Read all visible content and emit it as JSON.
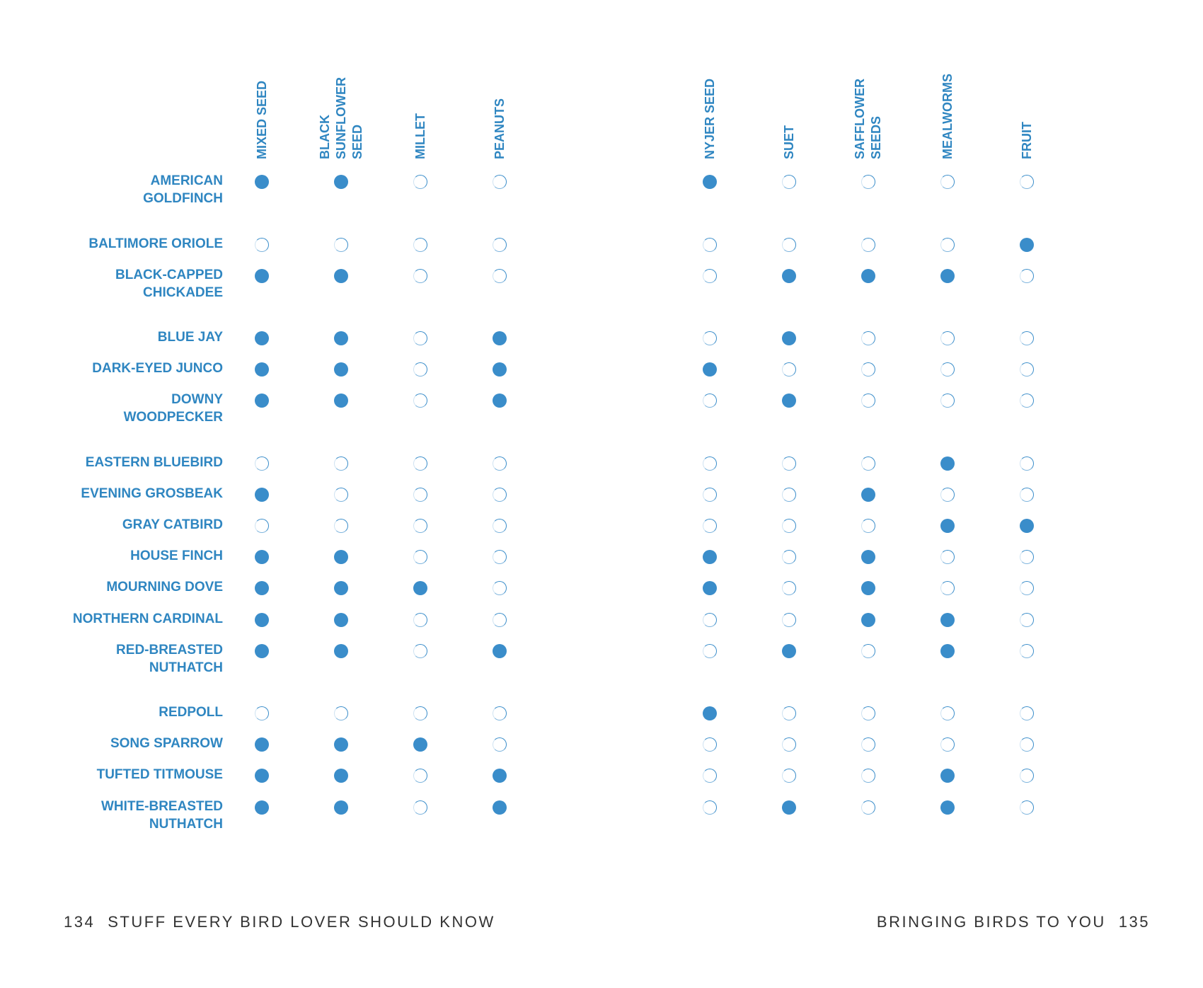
{
  "columns": [
    {
      "lines": [
        "MIXED SEED"
      ]
    },
    {
      "lines": [
        "BLACK",
        "SUNFLOWER",
        "SEED"
      ]
    },
    {
      "lines": [
        "MILLET"
      ]
    },
    {
      "lines": [
        "PEANUTS"
      ]
    },
    {
      "lines": [
        "NYJER SEED"
      ]
    },
    {
      "lines": [
        "SUET"
      ]
    },
    {
      "lines": [
        "SAFFLOWER",
        "SEEDS"
      ]
    },
    {
      "lines": [
        "MEALWORMS"
      ]
    },
    {
      "lines": [
        "FRUIT"
      ]
    }
  ],
  "birds": [
    {
      "name": [
        "AMERICAN",
        "GOLDFINCH"
      ],
      "foods": [
        1,
        1,
        0,
        0,
        1,
        0,
        0,
        0,
        0
      ]
    },
    {
      "name": [
        "BALTIMORE ORIOLE"
      ],
      "foods": [
        0,
        0,
        0,
        0,
        0,
        0,
        0,
        0,
        1
      ]
    },
    {
      "name": [
        "BLACK-CAPPED",
        "CHICKADEE"
      ],
      "foods": [
        1,
        1,
        0,
        0,
        0,
        1,
        1,
        1,
        0
      ]
    },
    {
      "name": [
        "BLUE JAY"
      ],
      "foods": [
        1,
        1,
        0,
        1,
        0,
        1,
        0,
        0,
        0
      ]
    },
    {
      "name": [
        "DARK-EYED JUNCO"
      ],
      "foods": [
        1,
        1,
        0,
        1,
        1,
        0,
        0,
        0,
        0
      ]
    },
    {
      "name": [
        "DOWNY",
        "WOODPECKER"
      ],
      "foods": [
        1,
        1,
        0,
        1,
        0,
        1,
        0,
        0,
        0
      ]
    },
    {
      "name": [
        "EASTERN BLUEBIRD"
      ],
      "foods": [
        0,
        0,
        0,
        0,
        0,
        0,
        0,
        1,
        0
      ]
    },
    {
      "name": [
        "EVENING GROSBEAK"
      ],
      "foods": [
        1,
        0,
        0,
        0,
        0,
        0,
        1,
        0,
        0
      ]
    },
    {
      "name": [
        "GRAY CATBIRD"
      ],
      "foods": [
        0,
        0,
        0,
        0,
        0,
        0,
        0,
        1,
        1
      ]
    },
    {
      "name": [
        "HOUSE FINCH"
      ],
      "foods": [
        1,
        1,
        0,
        0,
        1,
        0,
        1,
        0,
        0
      ]
    },
    {
      "name": [
        "MOURNING DOVE"
      ],
      "foods": [
        1,
        1,
        1,
        0,
        1,
        0,
        1,
        0,
        0
      ]
    },
    {
      "name": [
        "NORTHERN CARDINAL"
      ],
      "foods": [
        1,
        1,
        0,
        0,
        0,
        0,
        1,
        1,
        0
      ]
    },
    {
      "name": [
        "RED-BREASTED",
        "NUTHATCH"
      ],
      "foods": [
        1,
        1,
        0,
        1,
        0,
        1,
        0,
        1,
        0
      ]
    },
    {
      "name": [
        "REDPOLL"
      ],
      "foods": [
        0,
        0,
        0,
        0,
        1,
        0,
        0,
        0,
        0
      ]
    },
    {
      "name": [
        "SONG SPARROW"
      ],
      "foods": [
        1,
        1,
        1,
        0,
        0,
        0,
        0,
        0,
        0
      ]
    },
    {
      "name": [
        "TUFTED TITMOUSE"
      ],
      "foods": [
        1,
        1,
        0,
        1,
        0,
        0,
        0,
        1,
        0
      ]
    },
    {
      "name": [
        "WHITE-BREASTED",
        "NUTHATCH"
      ],
      "foods": [
        1,
        1,
        0,
        1,
        0,
        1,
        0,
        1,
        0
      ]
    }
  ],
  "footer": {
    "left_page_number": "134",
    "left_title": "STUFF EVERY BIRD LOVER SHOULD KNOW",
    "right_title": "BRINGING BIRDS TO YOU",
    "right_page_number": "135"
  },
  "colors": {
    "accent": "#2f86c1",
    "dot_fill": "#3a8dca",
    "footer_text": "#333333"
  }
}
